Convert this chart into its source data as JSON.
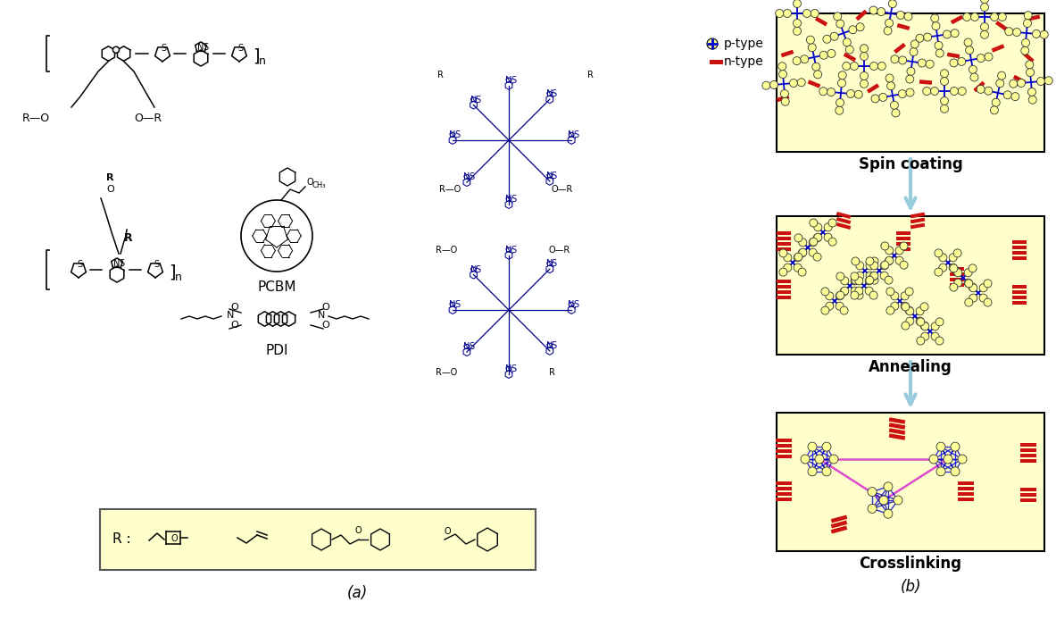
{
  "figure_width": 11.83,
  "figure_height": 7.12,
  "bg_color": "#ffffff",
  "yellow_bg": "#ffffcc",
  "title_a": "(a)",
  "title_b": "(b)",
  "panel_b_labels": [
    "Spin coating",
    "Annealing",
    "Crosslinking"
  ],
  "blue_color": "#0000cc",
  "arrow_color": "#99ccdd",
  "legend_p": "p-type",
  "legend_n": "n-type",
  "pcbm_label": "PCBM",
  "pdi_label": "PDI",
  "r_label": "R :"
}
